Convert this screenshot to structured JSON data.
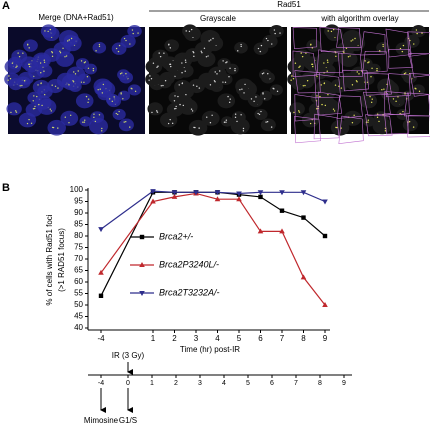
{
  "panel_a": {
    "label": "A",
    "merge_title": "Merge (DNA+Rad51)",
    "group_title": "Rad51",
    "grayscale_title": "Grayscale",
    "overlay_title": "with algorithm overlay"
  },
  "panel_b_label": "B",
  "chart_data": {
    "type": "line",
    "categories": [
      "-4",
      "1",
      "2",
      "3",
      "4",
      "5",
      "6",
      "7",
      "8",
      "9"
    ],
    "series": [
      {
        "name": "Brca2+/-",
        "color": "#000000",
        "marker": "square",
        "values": [
          54,
          99,
          99,
          99,
          99,
          98,
          97,
          91,
          88,
          80
        ]
      },
      {
        "name": "Brca2P3240L/-",
        "color": "#c0282d",
        "marker": "triangle-up",
        "values": [
          64,
          95,
          97,
          98.5,
          96,
          96,
          82,
          82,
          62,
          50
        ]
      },
      {
        "name": "Brca2T3232A/-",
        "color": "#2e2e8c",
        "marker": "triangle-down",
        "values": [
          83,
          99.5,
          99,
          99,
          99,
          98.5,
          99,
          99,
          99,
          95
        ]
      }
    ],
    "ylim": [
      40,
      100
    ],
    "yticks": [
      40,
      45,
      50,
      55,
      60,
      65,
      70,
      75,
      80,
      85,
      90,
      95,
      100
    ],
    "ylabel": [
      "% of cells with Rad51 foci",
      "(>1 RAD51 focus)"
    ],
    "xlabel": "Time (hr) post-IR"
  },
  "timeline": {
    "ticks": [
      "-4",
      "0",
      "1",
      "2",
      "3",
      "4",
      "5",
      "6",
      "7",
      "8",
      "9"
    ],
    "ir_label": "IR (3 Gy)",
    "mimosine_label": "Mimosine",
    "g1s_label": "G1/S"
  }
}
